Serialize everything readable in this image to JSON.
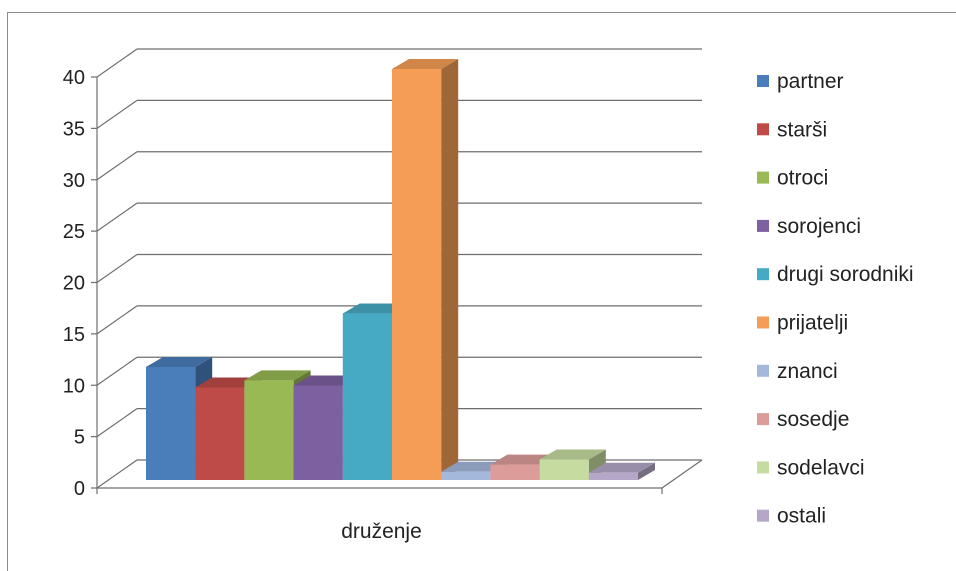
{
  "chart_data": {
    "type": "bar",
    "categories": [
      "druženje"
    ],
    "series": [
      {
        "name": "partner",
        "value": 11,
        "color": "#4a7ebb"
      },
      {
        "name": "starši",
        "value": 9,
        "color": "#be4b48"
      },
      {
        "name": "otroci",
        "value": 9.7,
        "color": "#98b954"
      },
      {
        "name": "sorojenci",
        "value": 9.2,
        "color": "#7d60a0"
      },
      {
        "name": "drugi sorodniki",
        "value": 16.2,
        "color": "#46aac5"
      },
      {
        "name": "prijatelji",
        "value": 40,
        "color": "#f59d56"
      },
      {
        "name": "znanci",
        "value": 0.8,
        "color": "#a4b8dc"
      },
      {
        "name": "sosedje",
        "value": 1.5,
        "color": "#dc9c9a"
      },
      {
        "name": "sodelavci",
        "value": 2,
        "color": "#c5dba0"
      },
      {
        "name": "ostali",
        "value": 0.7,
        "color": "#b4a7c7"
      }
    ],
    "ylim": [
      0,
      40
    ],
    "yticks": [
      0,
      5,
      10,
      15,
      20,
      25,
      30,
      35,
      40
    ],
    "grid": true,
    "legend_position": "right",
    "title": "",
    "xlabel": "",
    "ylabel": ""
  }
}
